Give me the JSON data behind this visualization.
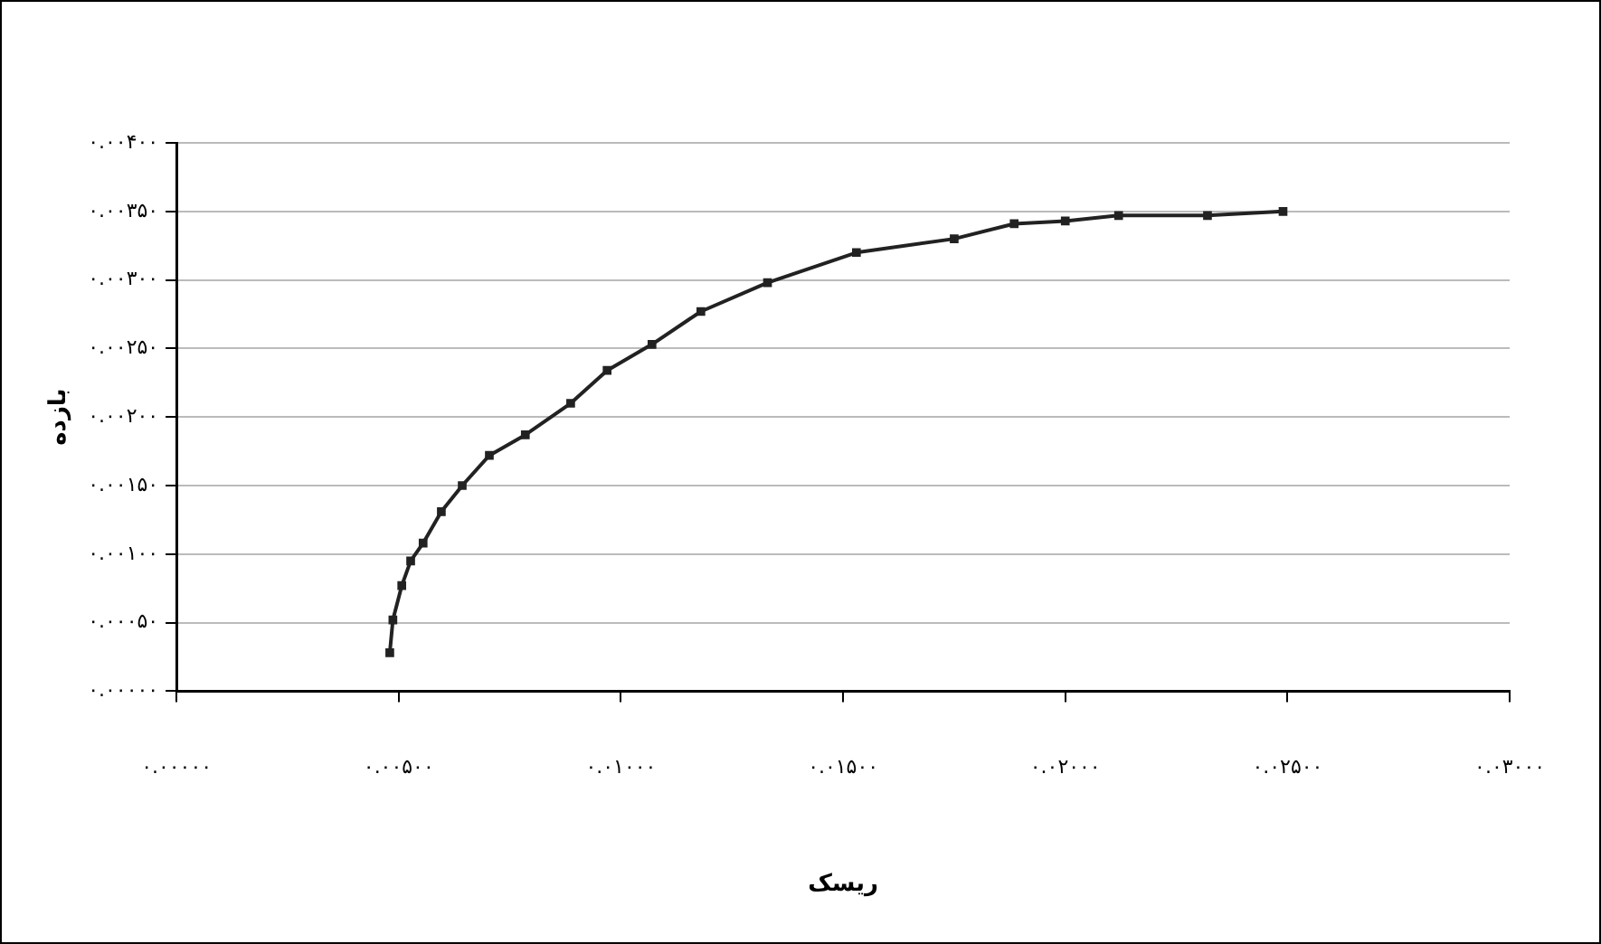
{
  "chart_data": {
    "type": "line",
    "xlabel": "ریسک",
    "ylabel": "بازده",
    "x": [
      0.0048,
      0.00487,
      0.00507,
      0.00527,
      0.00555,
      0.00596,
      0.00643,
      0.00704,
      0.00785,
      0.00887,
      0.00969,
      0.0107,
      0.0118,
      0.0133,
      0.0153,
      0.0175,
      0.01885,
      0.02,
      0.0212,
      0.0232,
      0.0249
    ],
    "series": [
      {
        "color": "#222222",
        "values": [
          0.00028,
          0.00052,
          0.00077,
          0.00095,
          0.00108,
          0.00131,
          0.0015,
          0.00172,
          0.00187,
          0.0021,
          0.00234,
          0.00253,
          0.00277,
          0.00298,
          0.0032,
          0.0033,
          0.00341,
          0.00343,
          0.00347,
          0.00347,
          0.0035
        ]
      }
    ],
    "xlim": [
      0,
      0.03
    ],
    "xticks": [
      {
        "value": 0,
        "label": "۰.۰۰۰۰۰"
      },
      {
        "value": 0.005,
        "label": "۰.۰۰۵۰۰"
      },
      {
        "value": 0.01,
        "label": "۰.۰۱۰۰۰"
      },
      {
        "value": 0.015,
        "label": "۰.۰۱۵۰۰"
      },
      {
        "value": 0.02,
        "label": "۰.۰۲۰۰۰"
      },
      {
        "value": 0.025,
        "label": "۰.۰۲۵۰۰"
      },
      {
        "value": 0.03,
        "label": "۰.۰۳۰۰۰"
      }
    ],
    "ylim": [
      0,
      0.004
    ],
    "yticks": [
      {
        "value": 0,
        "label": "۰.۰۰۰۰۰"
      },
      {
        "value": 0.0005,
        "label": "۰.۰۰۰۵۰"
      },
      {
        "value": 0.001,
        "label": "۰.۰۰۱۰۰"
      },
      {
        "value": 0.0015,
        "label": "۰.۰۰۱۵۰"
      },
      {
        "value": 0.002,
        "label": "۰.۰۰۲۰۰"
      },
      {
        "value": 0.0025,
        "label": "۰.۰۰۲۵۰"
      },
      {
        "value": 0.003,
        "label": "۰.۰۰۳۰۰"
      },
      {
        "value": 0.0035,
        "label": "۰.۰۰۳۵۰"
      },
      {
        "value": 0.004,
        "label": "۰.۰۰۴۰۰"
      }
    ],
    "grid": "y",
    "marker": "square",
    "line_style": "solid"
  }
}
